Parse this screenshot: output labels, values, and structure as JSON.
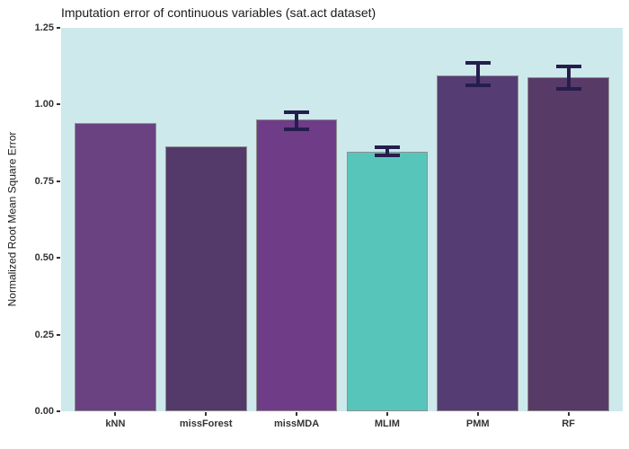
{
  "chart_data": {
    "type": "bar",
    "title": "Imputation error of continuous variables (sat.act dataset)",
    "xlabel": "",
    "ylabel": "Normalized Root Mean Square Error",
    "ylim": [
      0,
      1.25
    ],
    "ytick_labels": [
      "0.00",
      "0.25",
      "0.50",
      "0.75",
      "1.00",
      "1.25"
    ],
    "ytick_values": [
      0,
      0.25,
      0.5,
      0.75,
      1.0,
      1.25
    ],
    "grid": false,
    "legend_position": "none",
    "categories": [
      "kNN",
      "missForest",
      "missMDA",
      "MLIM",
      "PMM",
      "RF"
    ],
    "values": [
      0.94,
      0.865,
      0.95,
      0.845,
      1.095,
      1.09
    ],
    "error_low": [
      null,
      null,
      0.92,
      0.833,
      1.063,
      1.05
    ],
    "error_high": [
      null,
      null,
      0.975,
      0.86,
      1.135,
      1.125
    ],
    "bar_colors": [
      "#6a4181",
      "#533a6a",
      "#6f3c88",
      "#58c5bb",
      "#553d73",
      "#573b66"
    ],
    "panel_background": "#cde9eb",
    "bar_border_color": "#8f8f8f",
    "errorbar_color": "#251d4d",
    "tick_color": "#333333"
  }
}
